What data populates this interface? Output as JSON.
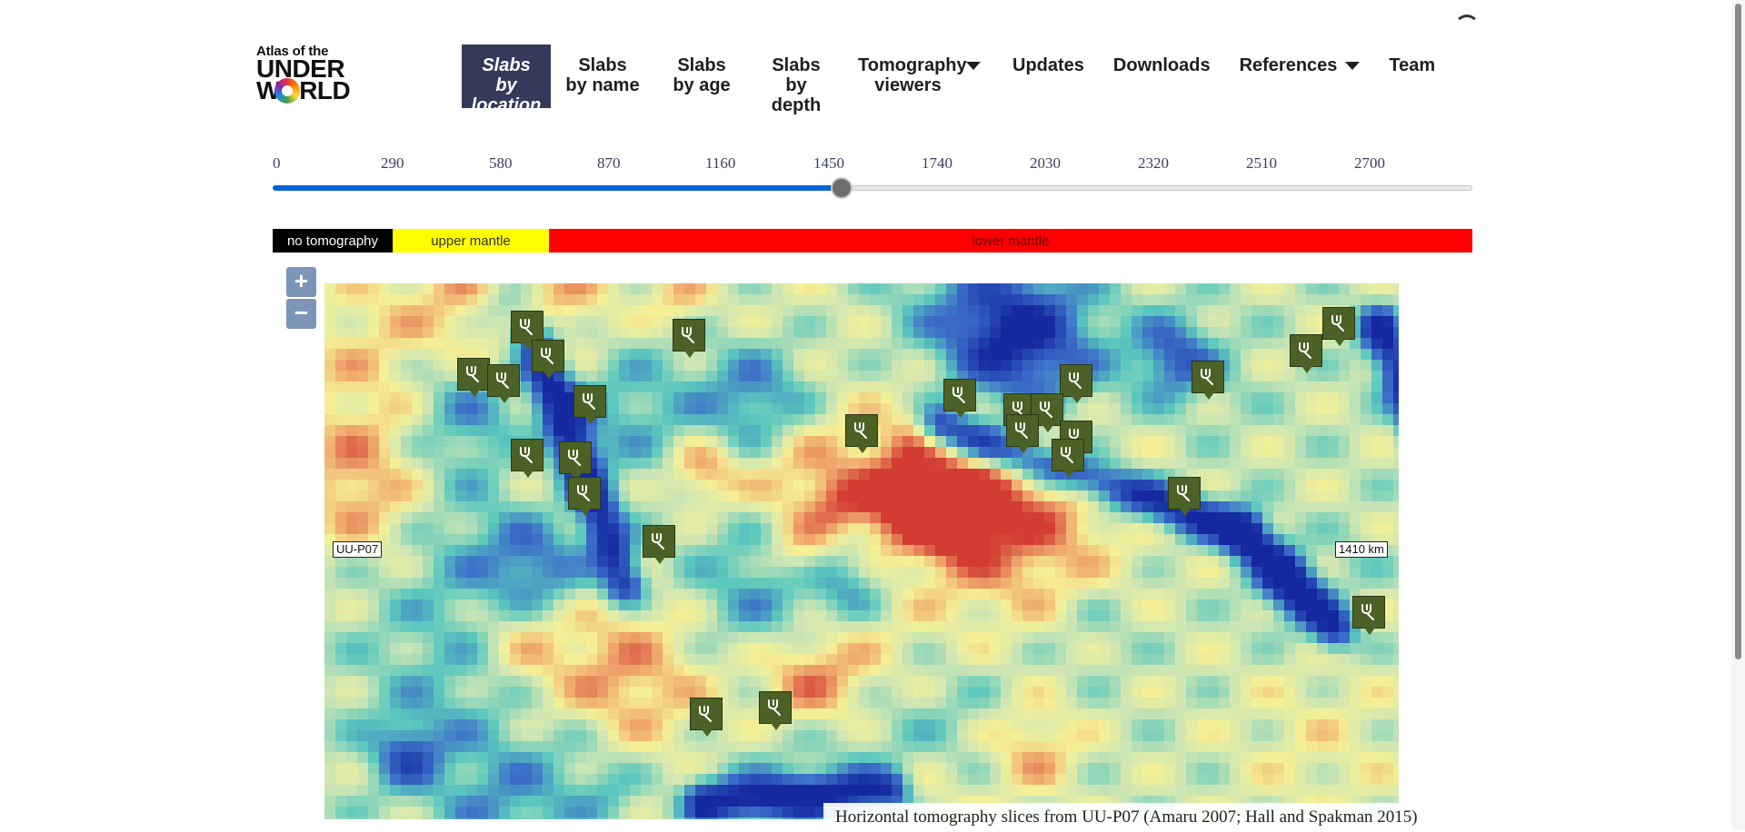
{
  "logo": {
    "line1": "Atlas of the",
    "line2": "UNDER",
    "line3": "WORLD"
  },
  "nav": {
    "items": [
      {
        "label": "Slabs by location",
        "active": true
      },
      {
        "label": "Slabs by name"
      },
      {
        "label": "Slabs by age"
      },
      {
        "label": "Slabs by depth"
      },
      {
        "label": "Tomography viewers",
        "dropdown": true
      },
      {
        "label": "Updates"
      },
      {
        "label": "Downloads"
      },
      {
        "label": "References",
        "dropdown": true
      },
      {
        "label": "Team"
      }
    ]
  },
  "depth_slider": {
    "tick_labels": [
      "0",
      "290",
      "580",
      "870",
      "1160",
      "1450",
      "1740",
      "2030",
      "2320",
      "2510",
      "2700"
    ],
    "selected_value": 1410,
    "max": 3220,
    "fill_color": "#0b63d9"
  },
  "layer_legend": {
    "segments": [
      {
        "label": "no tomography",
        "color": "#000000"
      },
      {
        "label": "upper mantle",
        "color": "#ffff00"
      },
      {
        "label": "lower mantle",
        "color": "#ff0000"
      }
    ]
  },
  "map": {
    "zoom_in": "+",
    "zoom_out": "−",
    "model_label": "UU-P07",
    "depth_label": "1410 km",
    "marker_icon": "trident-icon",
    "marker_color": "#4c6126",
    "markers": [
      {
        "lon": -112,
        "lat": 70
      },
      {
        "lon": -58,
        "lat": 67
      },
      {
        "lon": 160,
        "lat": 71
      },
      {
        "lon": -105,
        "lat": 60
      },
      {
        "lon": 149,
        "lat": 62
      },
      {
        "lon": -130,
        "lat": 54
      },
      {
        "lon": -120,
        "lat": 52
      },
      {
        "lon": 72,
        "lat": 52
      },
      {
        "lon": 116,
        "lat": 53
      },
      {
        "lon": -91,
        "lat": 45
      },
      {
        "lon": 33,
        "lat": 47
      },
      {
        "lon": 53,
        "lat": 42
      },
      {
        "lon": 62,
        "lat": 42
      },
      {
        "lon": 0,
        "lat": 35
      },
      {
        "lon": 54,
        "lat": 35
      },
      {
        "lon": 72,
        "lat": 33
      },
      {
        "lon": -112,
        "lat": 27
      },
      {
        "lon": -96,
        "lat": 26
      },
      {
        "lon": 69,
        "lat": 27
      },
      {
        "lon": -93,
        "lat": 14
      },
      {
        "lon": 108,
        "lat": 14
      },
      {
        "lon": -68,
        "lat": -2
      },
      {
        "lon": 170,
        "lat": -26
      },
      {
        "lon": -29,
        "lat": -58
      },
      {
        "lon": -52,
        "lat": -60
      }
    ]
  },
  "caption": "Horizontal tomography slices from UU-P07 (Amaru 2007; Hall and Spakman 2015)"
}
